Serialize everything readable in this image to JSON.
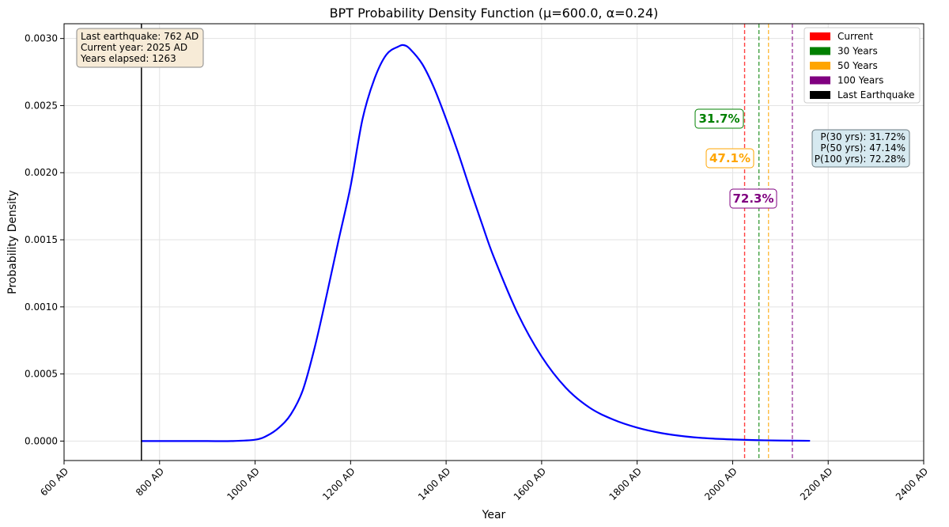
{
  "chart_data": {
    "type": "line",
    "title": "BPT Probability Density Function (μ=600.0, α=0.24)",
    "xlabel": "Year",
    "ylabel": "Probability Density",
    "xlim": [
      600,
      2400
    ],
    "ylim": [
      -0.000145,
      0.00311
    ],
    "x_ticks": [
      600,
      800,
      1000,
      1200,
      1400,
      1600,
      1800,
      2000,
      2200,
      2400
    ],
    "x_tick_labels": [
      "600 AD",
      "800 AD",
      "1000 AD",
      "1200 AD",
      "1400 AD",
      "1600 AD",
      "1800 AD",
      "2000 AD",
      "2200 AD",
      "2400 AD"
    ],
    "y_ticks": [
      0.0,
      0.0005,
      0.001,
      0.0015,
      0.002,
      0.0025,
      0.003
    ],
    "y_tick_labels": [
      "0.0000",
      "0.0005",
      "0.0010",
      "0.0015",
      "0.0020",
      "0.0025",
      "0.0030"
    ],
    "grid": true,
    "series": [
      {
        "name": "",
        "color": "#0000ff",
        "x": [
          762,
          800,
          850,
          900,
          950,
          1000,
          1025,
          1050,
          1075,
          1100,
          1125,
          1150,
          1175,
          1200,
          1225,
          1250,
          1275,
          1300,
          1312,
          1325,
          1350,
          1375,
          1400,
          1425,
          1450,
          1475,
          1500,
          1550,
          1600,
          1650,
          1700,
          1750,
          1800,
          1850,
          1900,
          1950,
          2000,
          2050,
          2100,
          2162
        ],
        "y": [
          0.0,
          0.0,
          0.0,
          0.0,
          0.0,
          1e-05,
          4e-05,
          0.0001,
          0.0002,
          0.00038,
          0.0007,
          0.00109,
          0.0015,
          0.0019,
          0.0024,
          0.0027,
          0.00288,
          0.00294,
          0.00295,
          0.00292,
          0.00281,
          0.00263,
          0.0024,
          0.00215,
          0.00188,
          0.00162,
          0.00137,
          0.00095,
          0.00063,
          0.0004,
          0.00025,
          0.00016,
          0.0001,
          6e-05,
          3.5e-05,
          2e-05,
          1.2e-05,
          7e-06,
          4e-06,
          2e-06
        ]
      }
    ],
    "vertical_lines": [
      {
        "x": 762,
        "color": "#000000",
        "style": "solid",
        "legend": "Last Earthquake"
      },
      {
        "x": 2025,
        "color": "#ff0000",
        "style": "dashed",
        "legend": "Current"
      },
      {
        "x": 2055,
        "color": "#008000",
        "style": "dashed",
        "legend": "30 Years"
      },
      {
        "x": 2075,
        "color": "#ffa500",
        "style": "dashed",
        "legend": "50 Years"
      },
      {
        "x": 2125,
        "color": "#800080",
        "style": "dashed",
        "legend": "100 Years"
      }
    ],
    "legend": {
      "placement": "top-right",
      "entries": [
        {
          "label": "Current",
          "color": "#ff0000"
        },
        {
          "label": "30 Years",
          "color": "#008000"
        },
        {
          "label": "50 Years",
          "color": "#ffa500"
        },
        {
          "label": "100 Years",
          "color": "#800080"
        },
        {
          "label": "Last Earthquake",
          "color": "#000000"
        }
      ]
    },
    "annotations": {
      "info_box": {
        "lines": [
          "Last earthquake: 762 AD",
          "Current year: 2025 AD",
          "Years elapsed: 1263"
        ],
        "background": "#f7ebd7"
      },
      "probability_labels": [
        {
          "text": "31.7%",
          "color": "#008000",
          "x": 1970,
          "y": 0.00239
        },
        {
          "text": "47.1%",
          "color": "#ffa500",
          "x": 1990,
          "y": 0.0021
        },
        {
          "text": "72.3%",
          "color": "#800080",
          "x": 2040,
          "y": 0.0018
        }
      ],
      "summary_box": {
        "lines": [
          "P(30 yrs): 31.72%",
          "P(50 yrs): 47.14%",
          "P(100 yrs): 72.28%"
        ],
        "background": "#d6e9f0"
      }
    }
  }
}
